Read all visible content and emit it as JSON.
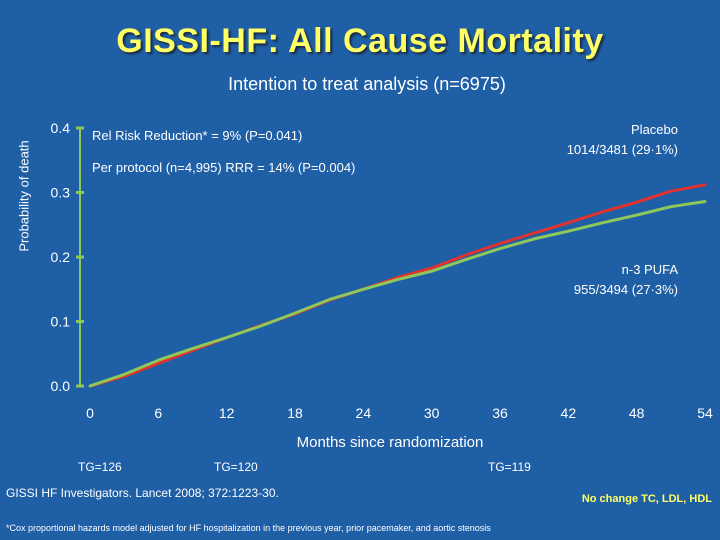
{
  "title": "GISSI-HF: All Cause Mortality",
  "subtitle": "Intention to treat analysis (n=6975)",
  "annotations": {
    "rrr": "Rel Risk Reduction* = 9% (P=0.041)",
    "per_protocol": "Per protocol (n=4,995) RRR = 14% (P=0.004)",
    "placebo_line1": "Placebo",
    "placebo_line2": "1014/3481 (29·1%)",
    "pufa_line1": "n-3 PUFA",
    "pufa_line2": "955/3494 (27·3%)"
  },
  "tg_labels": [
    "TG=126",
    "TG=120",
    "TG=119"
  ],
  "reference": "GISSI HF Investigators. Lancet 2008; 372:1223-30.",
  "no_change": "No change TC, LDL, HDL",
  "footnote": "*Cox proportional hazards model adjusted for HF hospitalization in the previous year, prior pacemaker, and aortic stenosis",
  "colors": {
    "background": "#1f5fa6",
    "title": "#ffff66",
    "placebo": "#e0322e",
    "pufa": "#8fc85a",
    "axis": "#8fc85a"
  },
  "chart_data": {
    "type": "line",
    "xlabel": "Months since randomization",
    "ylabel": "Probability of death",
    "xlim": [
      0,
      54
    ],
    "ylim": [
      0.0,
      0.4
    ],
    "x_ticks": [
      "0",
      "6",
      "12",
      "18",
      "24",
      "30",
      "36",
      "42",
      "48",
      "54"
    ],
    "y_ticks": [
      "0.0",
      "0.1",
      "0.2",
      "0.3",
      "0.4"
    ],
    "grid": false,
    "series": [
      {
        "name": "Placebo",
        "x": [
          0,
          3,
          6,
          9,
          12,
          15,
          18,
          21,
          24,
          27,
          30,
          33,
          36,
          39,
          42,
          45,
          48,
          51,
          54
        ],
        "y": [
          0.0,
          0.015,
          0.035,
          0.055,
          0.075,
          0.094,
          0.112,
          0.133,
          0.15,
          0.168,
          0.183,
          0.203,
          0.221,
          0.237,
          0.253,
          0.27,
          0.285,
          0.302,
          0.312
        ]
      },
      {
        "name": "n-3 PUFA",
        "x": [
          0,
          3,
          6,
          9,
          12,
          15,
          18,
          21,
          24,
          27,
          30,
          33,
          36,
          39,
          42,
          45,
          48,
          51,
          54
        ],
        "y": [
          0.0,
          0.018,
          0.04,
          0.058,
          0.075,
          0.093,
          0.113,
          0.134,
          0.15,
          0.165,
          0.178,
          0.196,
          0.213,
          0.228,
          0.24,
          0.253,
          0.265,
          0.278,
          0.286
        ]
      }
    ]
  }
}
